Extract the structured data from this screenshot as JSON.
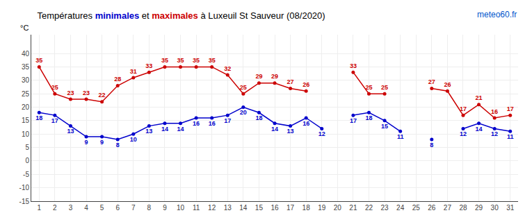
{
  "chart_data": {
    "type": "line",
    "title": "Températures minimales et maximales à Luxeuil St Sauveur (08/2020)",
    "ylabel": "°C",
    "x": [
      1,
      2,
      3,
      4,
      5,
      6,
      7,
      8,
      9,
      10,
      11,
      12,
      13,
      14,
      15,
      16,
      17,
      18,
      19,
      20,
      21,
      22,
      23,
      24,
      25,
      26,
      27,
      28,
      29,
      30,
      31
    ],
    "series": [
      {
        "name": "minimales",
        "color": "#0000cc",
        "values": [
          18,
          17,
          13,
          9,
          9,
          8,
          10,
          13,
          14,
          14,
          16,
          16,
          17,
          20,
          18,
          14,
          13,
          16,
          12,
          null,
          17,
          18,
          15,
          11,
          null,
          8,
          null,
          12,
          14,
          12,
          11
        ]
      },
      {
        "name": "maximales",
        "color": "#cc0000",
        "values": [
          35,
          25,
          23,
          23,
          22,
          28,
          31,
          33,
          35,
          35,
          35,
          35,
          32,
          25,
          29,
          29,
          27,
          26,
          null,
          null,
          33,
          25,
          25,
          null,
          null,
          27,
          26,
          17,
          21,
          16,
          17
        ]
      }
    ],
    "xlim": [
      0.5,
      31.5
    ],
    "xticks": [
      1,
      2,
      3,
      4,
      5,
      6,
      7,
      8,
      9,
      10,
      11,
      12,
      13,
      14,
      15,
      16,
      17,
      18,
      19,
      20,
      21,
      22,
      23,
      24,
      25,
      26,
      27,
      28,
      29,
      30,
      31
    ],
    "ylim": [
      -15,
      47
    ],
    "yticks": [
      -15,
      -10,
      -5,
      0,
      5,
      10,
      15,
      20,
      25,
      30,
      35,
      40
    ],
    "grid": true,
    "data_labels": true,
    "marker": "circle",
    "annotations": [
      {
        "text": "meteo60.fr",
        "color": "#0055cc"
      }
    ]
  }
}
